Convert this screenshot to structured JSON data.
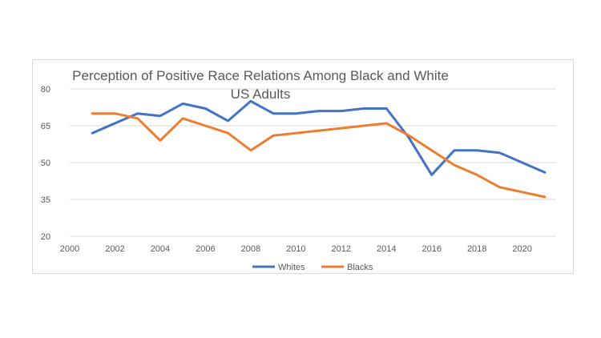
{
  "chart_data": {
    "type": "line",
    "title": "Perception of Positive Race Relations Among Black and White US Adults",
    "title_lines": [
      "Perception of Positive Race Relations Among Black and White",
      "US Adults"
    ],
    "xlabel": "",
    "ylabel": "",
    "x": [
      2001,
      2002,
      2003,
      2004,
      2005,
      2006,
      2007,
      2008,
      2009,
      2010,
      2011,
      2012,
      2013,
      2014,
      2015,
      2016,
      2017,
      2018,
      2019,
      2020,
      2021
    ],
    "series": [
      {
        "name": "Whites",
        "color": "#4472c4",
        "values": [
          62,
          66,
          70,
          69,
          74,
          72,
          67,
          75,
          70,
          70,
          71,
          71,
          72,
          72,
          60,
          45,
          55,
          55,
          54,
          50,
          46
        ]
      },
      {
        "name": "Blacks",
        "color": "#ed7d31",
        "values": [
          70,
          70,
          68,
          59,
          68,
          65,
          62,
          55,
          61,
          62,
          63,
          64,
          65,
          66,
          61,
          55,
          49,
          45,
          40,
          38,
          36
        ]
      }
    ],
    "xlim": [
      2000,
      2021.5
    ],
    "ylim": [
      20,
      80
    ],
    "x_ticks": [
      "2000",
      "2002",
      "2004",
      "2006",
      "2008",
      "2010",
      "2012",
      "2014",
      "2016",
      "2018",
      "2020"
    ],
    "y_ticks": [
      "20",
      "35",
      "50",
      "65",
      "80"
    ],
    "grid": true,
    "legend_position": "bottom"
  }
}
